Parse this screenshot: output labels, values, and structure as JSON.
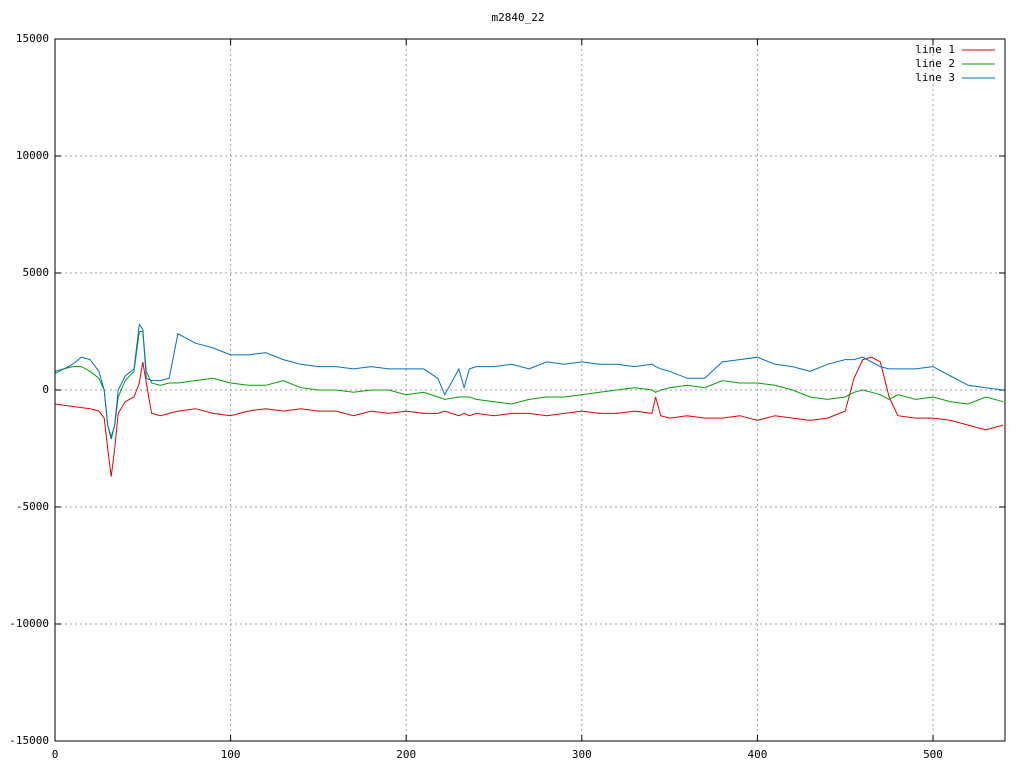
{
  "chart_data": {
    "type": "line",
    "title": "m2840_22",
    "x": [
      0,
      5,
      10,
      15,
      20,
      25,
      28,
      30,
      32,
      34,
      36,
      40,
      45,
      48,
      50,
      52,
      55,
      60,
      65,
      70,
      80,
      90,
      100,
      110,
      120,
      130,
      140,
      150,
      160,
      170,
      180,
      190,
      200,
      210,
      218,
      222,
      230,
      233,
      236,
      240,
      250,
      260,
      270,
      280,
      290,
      300,
      310,
      320,
      330,
      340,
      342,
      345,
      350,
      360,
      370,
      380,
      390,
      400,
      410,
      420,
      430,
      440,
      450,
      455,
      460,
      465,
      470,
      475,
      480,
      490,
      500,
      510,
      520,
      530,
      540
    ],
    "series": [
      {
        "name": "line 1",
        "color": "#e00000",
        "values": [
          -600,
          -650,
          -700,
          -750,
          -800,
          -900,
          -1200,
          -2500,
          -3700,
          -2500,
          -1000,
          -500,
          -300,
          300,
          1200,
          300,
          -1000,
          -1100,
          -1000,
          -900,
          -800,
          -1000,
          -1100,
          -900,
          -800,
          -900,
          -800,
          -900,
          -900,
          -1100,
          -900,
          -1000,
          -900,
          -1000,
          -1000,
          -900,
          -1100,
          -1000,
          -1100,
          -1000,
          -1100,
          -1000,
          -1000,
          -1100,
          -1000,
          -900,
          -1000,
          -1000,
          -900,
          -1000,
          -300,
          -1100,
          -1200,
          -1100,
          -1200,
          -1200,
          -1100,
          -1300,
          -1100,
          -1200,
          -1300,
          -1200,
          -900,
          500,
          1300,
          1400,
          1200,
          -300,
          -1100,
          -1200,
          -1200,
          -1300,
          -1500,
          -1700,
          -1500
        ]
      },
      {
        "name": "line 2",
        "color": "#00a000",
        "values": [
          700,
          900,
          1000,
          1000,
          800,
          500,
          0,
          -1500,
          -2000,
          -1500,
          -300,
          400,
          800,
          2500,
          2500,
          800,
          300,
          200,
          300,
          300,
          400,
          500,
          300,
          200,
          200,
          400,
          100,
          0,
          0,
          -100,
          0,
          0,
          -200,
          -100,
          -300,
          -400,
          -300,
          -300,
          -300,
          -400,
          -500,
          -600,
          -400,
          -300,
          -300,
          -200,
          -100,
          0,
          100,
          0,
          -100,
          0,
          100,
          200,
          100,
          400,
          300,
          300,
          200,
          0,
          -300,
          -400,
          -300,
          -100,
          0,
          -100,
          -200,
          -400,
          -200,
          -400,
          -300,
          -500,
          -600,
          -300,
          -500
        ]
      },
      {
        "name": "line 3",
        "color": "#0070c0",
        "values": [
          800,
          900,
          1100,
          1400,
          1300,
          800,
          0,
          -1500,
          -2100,
          -1500,
          0,
          600,
          900,
          2800,
          2600,
          500,
          400,
          400,
          500,
          2400,
          2000,
          1800,
          1500,
          1500,
          1600,
          1300,
          1100,
          1000,
          1000,
          900,
          1000,
          900,
          900,
          900,
          500,
          -200,
          900,
          100,
          900,
          1000,
          1000,
          1100,
          900,
          1200,
          1100,
          1200,
          1100,
          1100,
          1000,
          1100,
          1000,
          900,
          800,
          500,
          500,
          1200,
          1300,
          1400,
          1100,
          1000,
          800,
          1100,
          1300,
          1300,
          1400,
          1200,
          1000,
          900,
          900,
          900,
          1000,
          600,
          200,
          100,
          0
        ]
      }
    ],
    "xlim": [
      0,
      541
    ],
    "ylim": [
      -15000,
      15000
    ],
    "xticks": [
      0,
      100,
      200,
      300,
      400,
      500
    ],
    "yticks": [
      -15000,
      -10000,
      -5000,
      0,
      5000,
      10000,
      15000
    ],
    "grid": true,
    "legend": "top-right"
  }
}
